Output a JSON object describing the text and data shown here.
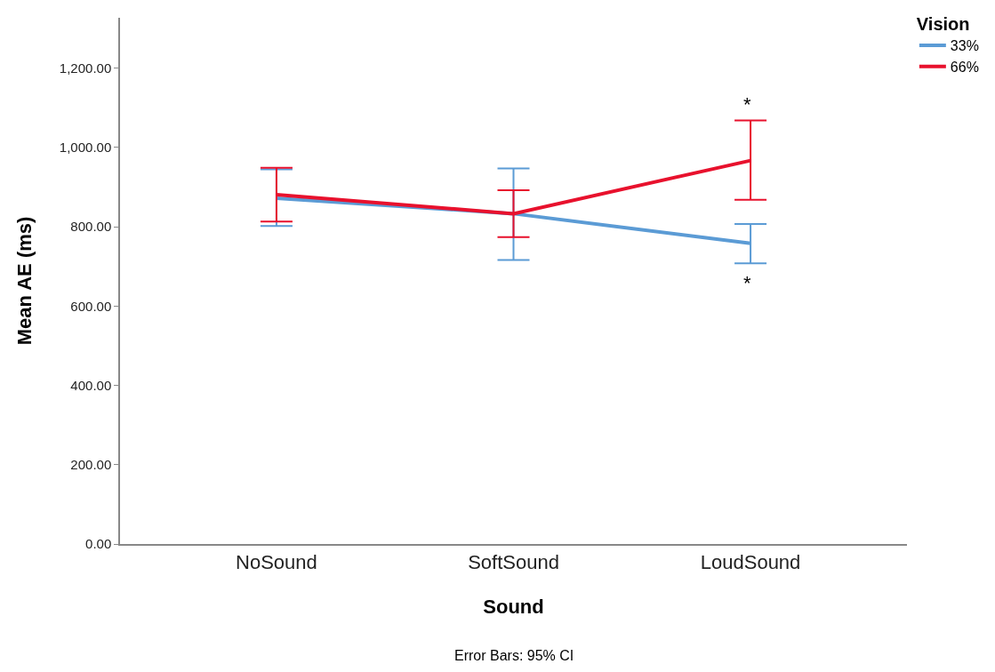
{
  "chart_data": {
    "type": "line",
    "xlabel": "Sound",
    "ylabel": "Mean AE (ms)",
    "legend_title": "Vision",
    "categories": [
      "NoSound",
      "SoftSound",
      "LoudSound"
    ],
    "series": [
      {
        "name": "33%",
        "color": "#5b9bd5",
        "values": [
          872,
          833,
          758
        ],
        "errors": [
          [
            802,
            945
          ],
          [
            716,
            947
          ],
          [
            708,
            807
          ]
        ]
      },
      {
        "name": "66%",
        "color": "#e8112d",
        "values": [
          881,
          833,
          967
        ],
        "errors": [
          [
            813,
            949
          ],
          [
            774,
            892
          ],
          [
            868,
            1068
          ]
        ]
      }
    ],
    "ylim": [
      0,
      1327
    ],
    "yticks": [
      {
        "value": 0,
        "label": "0.00"
      },
      {
        "value": 200,
        "label": "200.00"
      },
      {
        "value": 400,
        "label": "400.00"
      },
      {
        "value": 600,
        "label": "600.00"
      },
      {
        "value": 800,
        "label": "800.00"
      },
      {
        "value": 1000,
        "label": "1,000.00"
      },
      {
        "value": 1200,
        "label": "1,200.00"
      }
    ],
    "grid": false,
    "legend": "top right",
    "marker": "none",
    "line_style": "solid",
    "annotations": [
      "*",
      "*",
      "Error Bars: 95% CI"
    ]
  }
}
